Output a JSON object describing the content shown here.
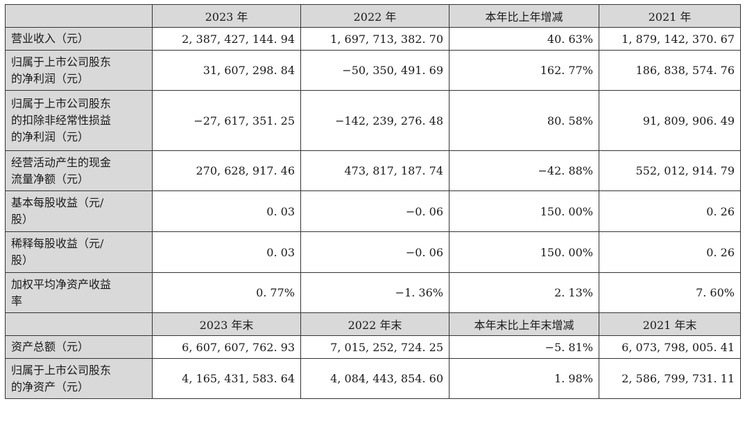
{
  "header": {
    "corner": "",
    "cols": [
      "2023 年",
      "2022 年",
      "本年比上年增减",
      "2021 年"
    ]
  },
  "rows": [
    {
      "label": [
        "营业收入（元）"
      ],
      "values": [
        "2, 387, 427, 144. 94",
        "1, 697, 713, 382. 70",
        "40. 63%",
        "1, 879, 142, 370. 67"
      ]
    },
    {
      "label": [
        "归属于上市公司股东",
        "的净利润（元）"
      ],
      "values": [
        "31, 607, 298. 84",
        "−50, 350, 491. 69",
        "162. 77%",
        "186, 838, 574. 76"
      ]
    },
    {
      "label": [
        "归属于上市公司股东",
        "的扣除非经常性损益",
        "的净利润（元）"
      ],
      "values": [
        "−27, 617, 351. 25",
        "−142, 239, 276. 48",
        "80. 58%",
        "91, 809, 906. 49"
      ]
    },
    {
      "label": [
        "经营活动产生的现金",
        "流量净额（元）"
      ],
      "values": [
        "270, 628, 917. 46",
        "473, 817, 187. 74",
        "−42. 88%",
        "552, 012, 914. 79"
      ]
    },
    {
      "label": [
        "基本每股收益（元/",
        "股）"
      ],
      "values": [
        "0. 03",
        "−0. 06",
        "150. 00%",
        "0. 26"
      ]
    },
    {
      "label": [
        "稀释每股收益（元/",
        "股）"
      ],
      "values": [
        "0. 03",
        "−0. 06",
        "150. 00%",
        "0. 26"
      ]
    },
    {
      "label": [
        "加权平均净资产收益",
        "率"
      ],
      "values": [
        "0. 77%",
        "−1. 36%",
        "2. 13%",
        "7. 60%"
      ]
    }
  ],
  "header2": {
    "corner": "",
    "cols": [
      "2023 年末",
      "2022 年末",
      "本年末比上年末增减",
      "2021 年末"
    ]
  },
  "rows2": [
    {
      "label": [
        "资产总额（元）"
      ],
      "values": [
        "6, 607, 607, 762. 93",
        "7, 015, 252, 724. 25",
        "−5. 81%",
        "6, 073, 798, 005. 41"
      ]
    },
    {
      "label": [
        "归属于上市公司股东",
        "的净资产（元）"
      ],
      "values": [
        "4, 165, 431, 583. 64",
        "4, 084, 443, 854. 60",
        "1. 98%",
        "2, 586, 799, 731. 11"
      ]
    }
  ]
}
